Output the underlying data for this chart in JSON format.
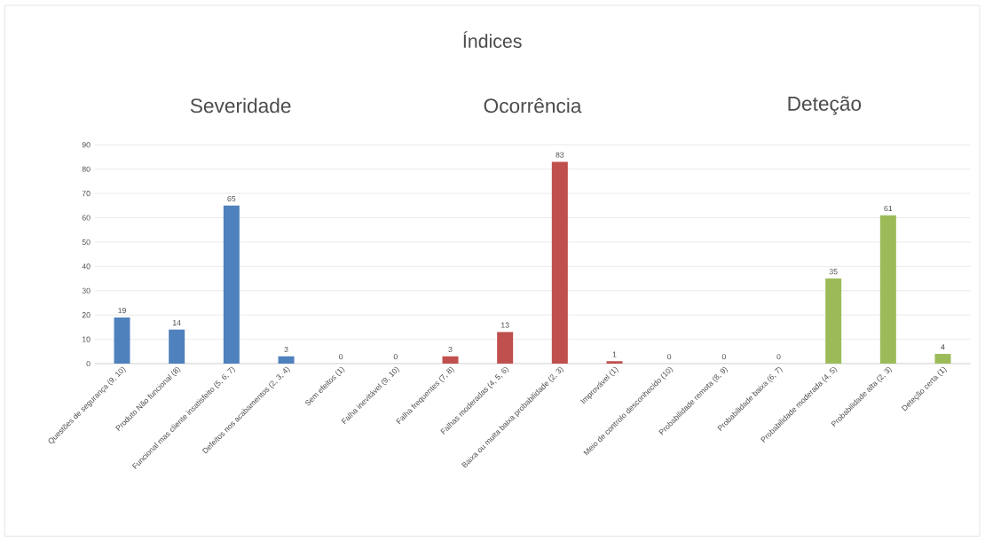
{
  "chart_data": {
    "type": "bar",
    "title": "Índices",
    "annotations": [
      "Severidade",
      "Ocorrência",
      "Deteção"
    ],
    "categories": [
      "Questões de segurança (9, 10)",
      "Produto Não funcional (8)",
      "Funcional mas cliente insatisfeito (5, 6, 7)",
      "Defeitos nos acabamentos (2, 3, 4)",
      "Sem efeitos (1)",
      "Falha inevitável (9, 10)",
      "Falha frequentes (7, 8)",
      "Falhas moderadas (4, 5, 6)",
      "Baixa ou muita baixa probabilidade (2, 3)",
      "Improvável (1)",
      "Meio de controlo desconhecido (10)",
      "Probabilidade remota (8, 9)",
      "Probabilidade baixa (6, 7)",
      "Probabilidade moderada (4, 5)",
      "Probabilidade alta (2, 3)",
      "Deteção certa (1)"
    ],
    "values": [
      19,
      14,
      65,
      3,
      0,
      0,
      3,
      13,
      83,
      1,
      0,
      0,
      0,
      35,
      61,
      4
    ],
    "colors": [
      "#4f81bd",
      "#4f81bd",
      "#4f81bd",
      "#4f81bd",
      "#4f81bd",
      "#c0504d",
      "#c0504d",
      "#c0504d",
      "#c0504d",
      "#c0504d",
      "#9bbb59",
      "#9bbb59",
      "#9bbb59",
      "#9bbb59",
      "#9bbb59",
      "#9bbb59"
    ],
    "ylim": [
      0,
      90
    ],
    "yticks": [
      0,
      10,
      20,
      30,
      40,
      50,
      60,
      70,
      80,
      90
    ],
    "grid": "y",
    "data_labels": true
  }
}
